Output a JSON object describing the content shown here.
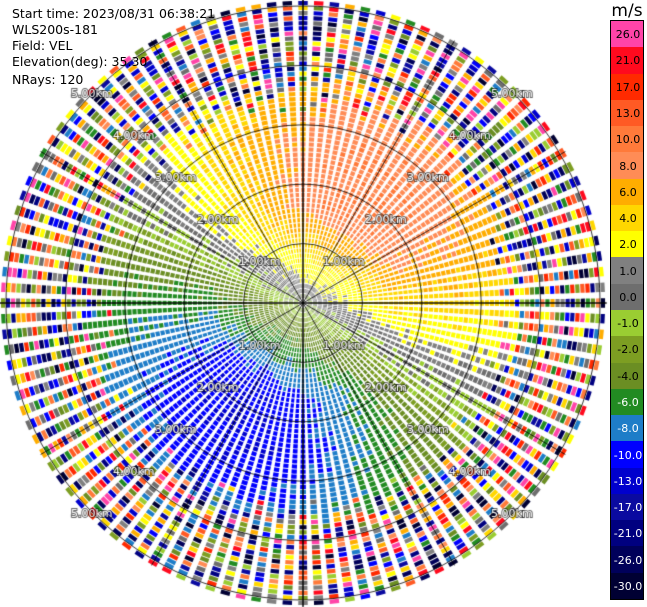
{
  "header": {
    "start_time": "Start time: 2023/08/31 06:38:21",
    "instrument": "WLS200s-181",
    "field": "Field: VEL",
    "elevation": "Elevation(deg): 35.30",
    "nrays": "NRays: 120"
  },
  "colorbar": {
    "unit": "m/s",
    "bins": [
      {
        "label": "26.0",
        "color": "#ff44a8"
      },
      {
        "label": "21.0",
        "color": "#ff0a1e"
      },
      {
        "label": "17.0",
        "color": "#ff2a00"
      },
      {
        "label": "13.0",
        "color": "#ff5a24"
      },
      {
        "label": "10.0",
        "color": "#ff7a3a"
      },
      {
        "label": "8.0",
        "color": "#ff8c56"
      },
      {
        "label": "6.0",
        "color": "#ffad00"
      },
      {
        "label": "4.0",
        "color": "#ffd700"
      },
      {
        "label": "2.0",
        "color": "#ffff00"
      },
      {
        "label": "1.0",
        "color": "#808080"
      },
      {
        "label": "0.0",
        "color": "#6e6e6e"
      },
      {
        "label": "-1.0",
        "color": "#9acd32"
      },
      {
        "label": "-2.0",
        "color": "#7d9e22"
      },
      {
        "label": "-4.0",
        "color": "#6b8e23"
      },
      {
        "label": "-6.0",
        "color": "#228b22"
      },
      {
        "label": "-8.0",
        "color": "#1e7dc8"
      },
      {
        "label": "-10.0",
        "color": "#0000ff"
      },
      {
        "label": "-13.0",
        "color": "#0000cd"
      },
      {
        "label": "-17.0",
        "color": "#0a0aa0"
      },
      {
        "label": "-21.0",
        "color": "#000080"
      },
      {
        "label": "-26.0",
        "color": "#00005a"
      },
      {
        "label": "-30.0",
        "color": "#000033"
      }
    ]
  },
  "chart_data": {
    "type": "heatmap",
    "projection": "polar PPI",
    "field": "VEL",
    "units": "m/s",
    "value_range": [
      -30.0,
      26.0
    ],
    "rays": 120,
    "range_rings_km": [
      1.0,
      2.0,
      3.0,
      4.0,
      5.0
    ],
    "range_ring_labels": [
      "1.00km",
      "2.00km",
      "3.00km",
      "4.00km",
      "5.00km"
    ],
    "max_range_km": 5.1,
    "azimuth_lines_deg": [
      0,
      30,
      60,
      90,
      120,
      150,
      180,
      210,
      240,
      270,
      300,
      330
    ],
    "pattern": {
      "positive_sector_deg": [
        300,
        100
      ],
      "positive_peak_azimuth_deg": 30,
      "positive_peak_value": 8.0,
      "negative_sector_deg": [
        120,
        280
      ],
      "negative_peak_azimuth_deg": 210,
      "negative_peak_value": -8.0,
      "near_zero_band_azimuths_deg": [
        110,
        290
      ],
      "valid_range_km": [
        0.1,
        3.6
      ],
      "noise_beyond_km": 3.6
    },
    "grid": true
  }
}
